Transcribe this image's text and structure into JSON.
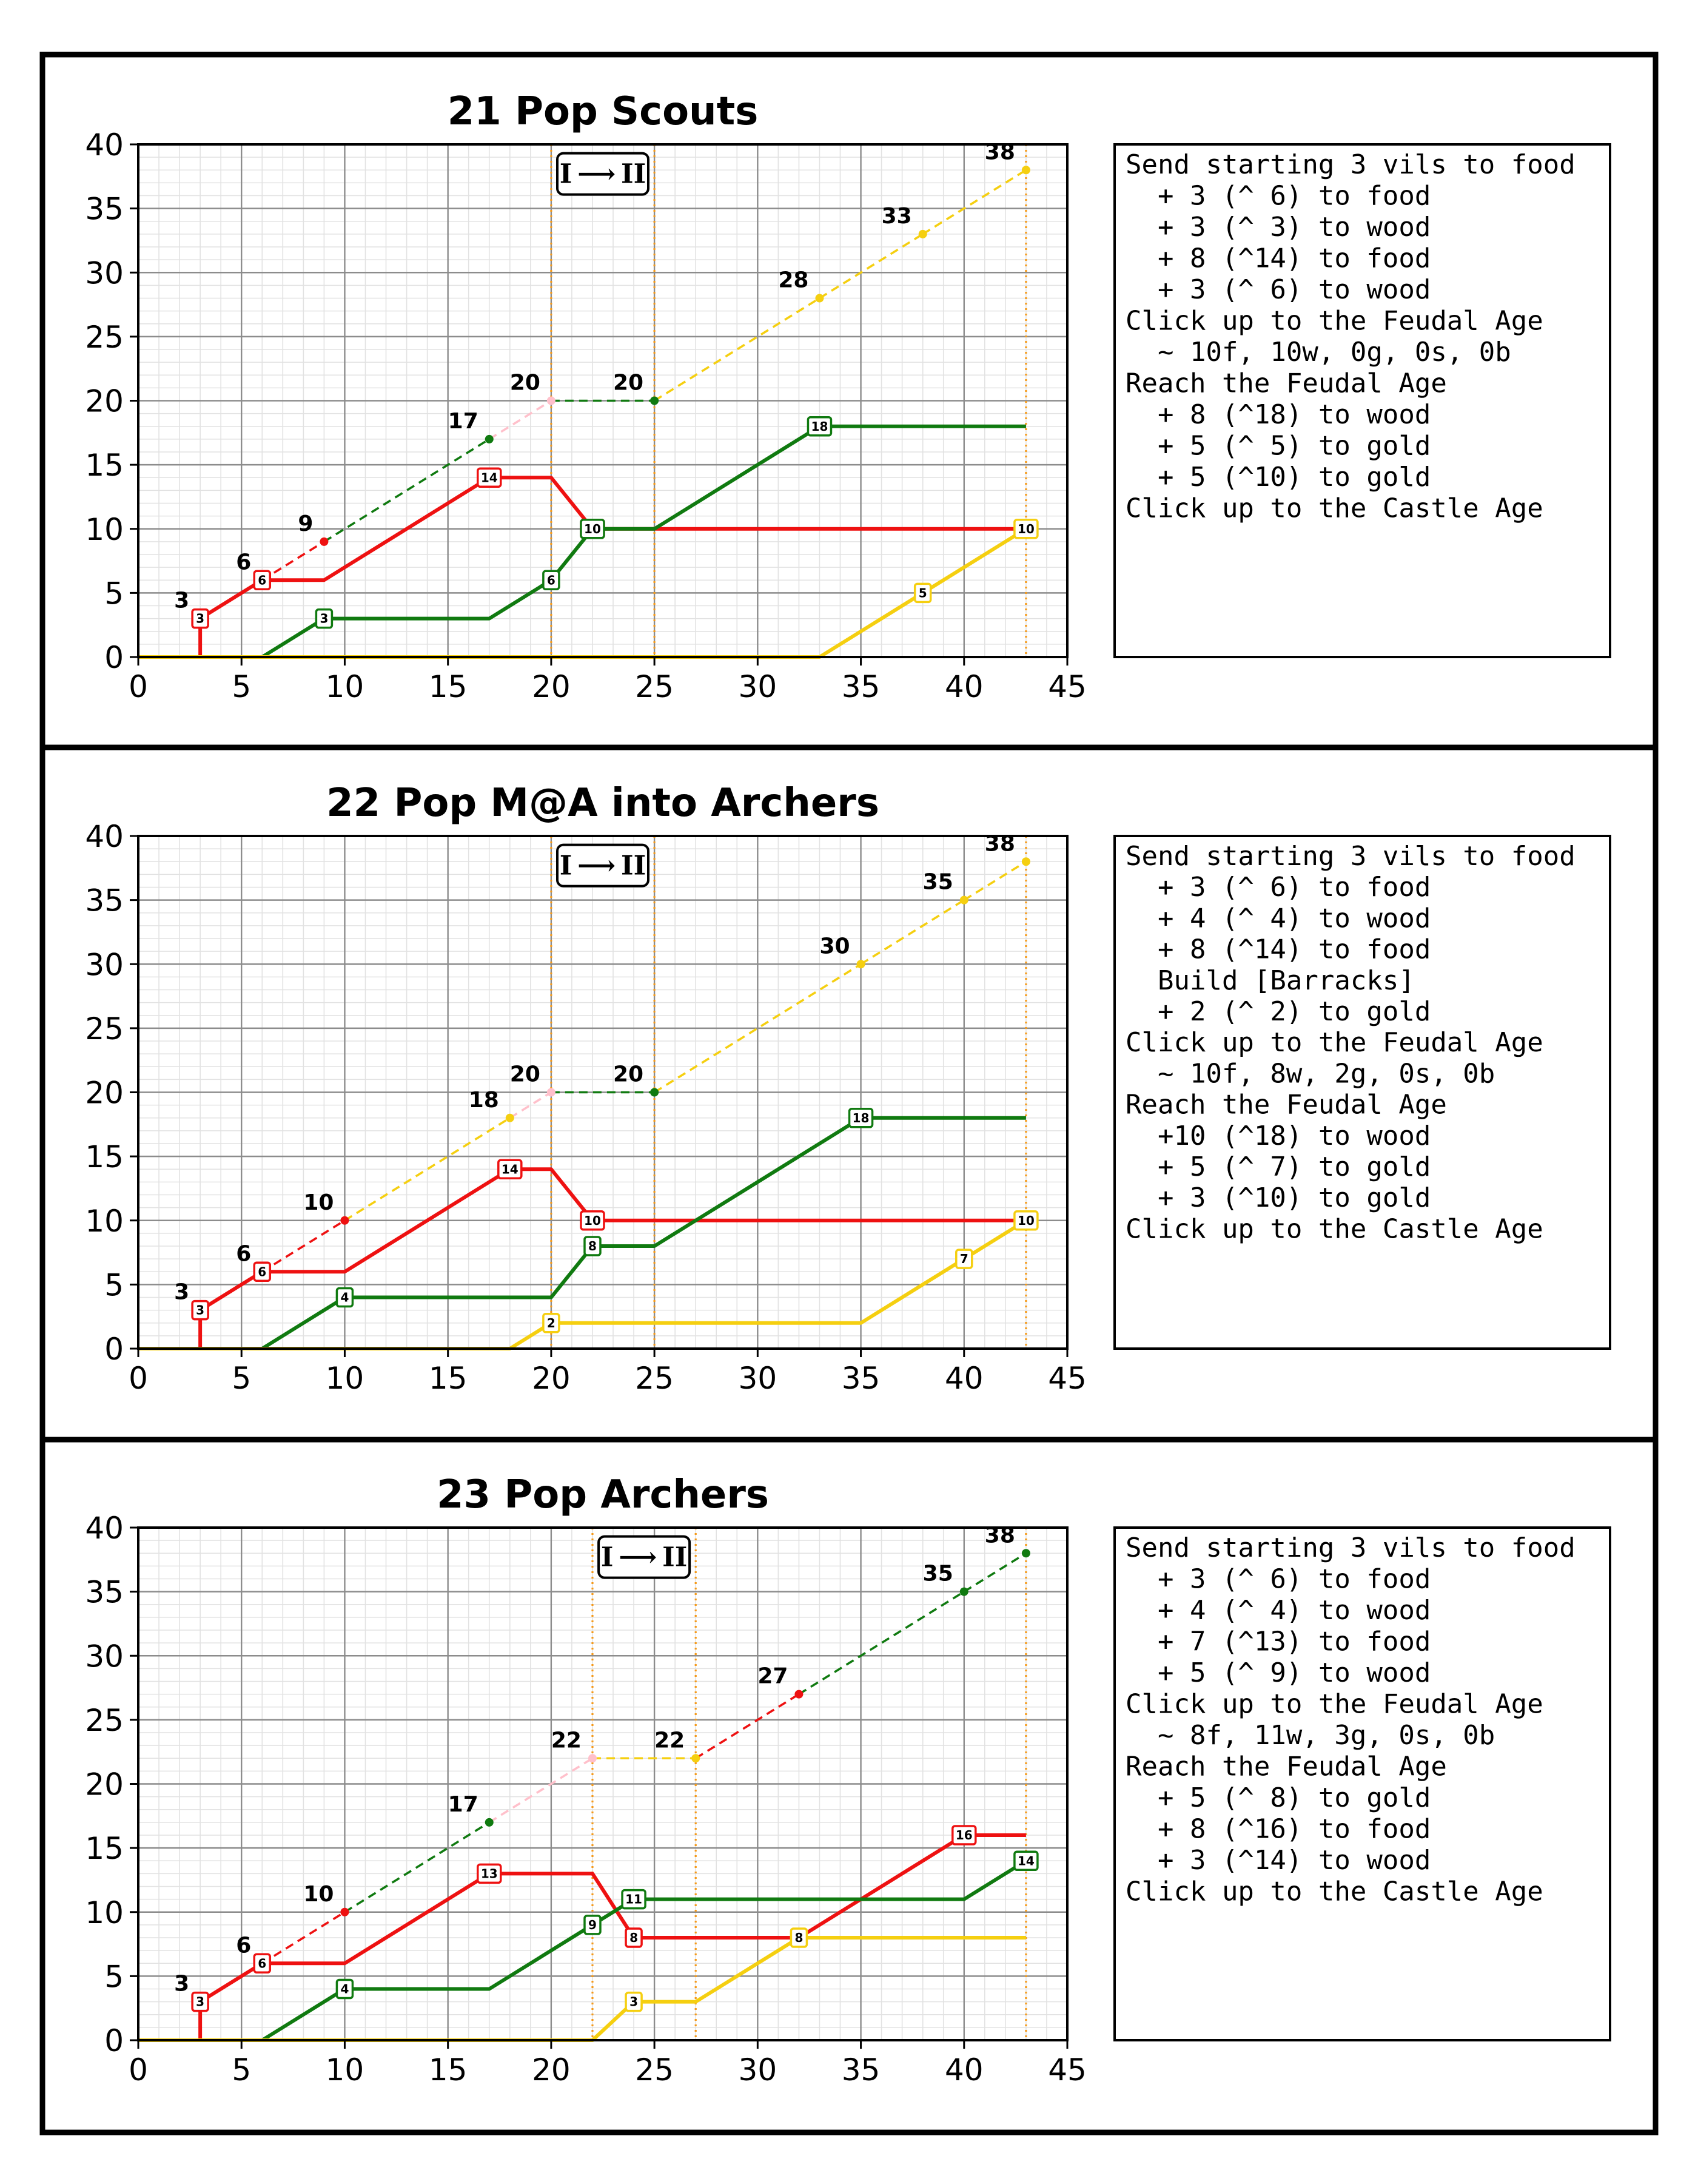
{
  "colors": {
    "food": "#ee1111",
    "wood": "#107a10",
    "gold": "#f5cf10",
    "idle": "#ffc0cb",
    "age_line": "#f59a1a"
  },
  "age_marker_text": "I ⟶ II",
  "chart_data": [
    {
      "type": "line",
      "title": "21 Pop Scouts",
      "xlim": [
        0,
        45
      ],
      "ylim": [
        0,
        40
      ],
      "xticks": [
        0,
        5,
        10,
        15,
        20,
        25,
        30,
        35,
        40,
        45
      ],
      "yticks": [
        0,
        5,
        10,
        15,
        20,
        25,
        30,
        35,
        40
      ],
      "grid": true,
      "age_up": {
        "click": 20,
        "reach": 25,
        "castle": 43
      },
      "population": [
        {
          "x": 3,
          "y": 3,
          "color": "food"
        },
        {
          "x": 6,
          "y": 6,
          "color": "wood"
        },
        {
          "x": 9,
          "y": 9,
          "color": "food"
        },
        {
          "x": 17,
          "y": 17,
          "color": "wood"
        },
        {
          "x": 20,
          "y": 20,
          "color": "idle"
        },
        {
          "x": 25,
          "y": 20,
          "color": "wood"
        },
        {
          "x": 33,
          "y": 28,
          "color": "gold"
        },
        {
          "x": 38,
          "y": 33,
          "color": "gold"
        },
        {
          "x": 43,
          "y": 38,
          "color": "gold"
        }
      ],
      "series": [
        {
          "resource": "food",
          "points": [
            [
              0,
              0
            ],
            [
              3,
              0
            ],
            [
              3,
              3
            ],
            [
              6,
              6
            ],
            [
              9,
              6
            ],
            [
              17,
              14
            ],
            [
              20,
              14
            ],
            [
              22,
              10
            ],
            [
              43,
              10
            ]
          ],
          "labels": [
            [
              3,
              3,
              "3"
            ],
            [
              6,
              6,
              "6"
            ],
            [
              17,
              14,
              "14"
            ],
            [
              22,
              10,
              "10"
            ]
          ]
        },
        {
          "resource": "wood",
          "points": [
            [
              0,
              0
            ],
            [
              6,
              0
            ],
            [
              9,
              3
            ],
            [
              17,
              3
            ],
            [
              20,
              6
            ],
            [
              22,
              10
            ],
            [
              25,
              10
            ],
            [
              33,
              18
            ],
            [
              43,
              18
            ]
          ],
          "labels": [
            [
              9,
              3,
              "3"
            ],
            [
              20,
              6,
              "6"
            ],
            [
              22,
              10,
              "10"
            ],
            [
              33,
              18,
              "18"
            ]
          ]
        },
        {
          "resource": "gold",
          "points": [
            [
              0,
              0
            ],
            [
              33,
              0
            ],
            [
              43,
              10
            ]
          ],
          "labels": [
            [
              38,
              5,
              "5"
            ],
            [
              43,
              10,
              "10"
            ]
          ]
        }
      ],
      "build_order": [
        "Send starting 3 vils to food",
        "  + 3 (^ 6) to food",
        "  + 3 (^ 3) to wood",
        "  + 8 (^14) to food",
        "  + 3 (^ 6) to wood",
        "Click up to the Feudal Age",
        "  ~ 10f, 10w, 0g, 0s, 0b",
        "Reach the Feudal Age",
        "  + 8 (^18) to wood",
        "  + 5 (^ 5) to gold",
        "  + 5 (^10) to gold",
        "Click up to the Castle Age"
      ]
    },
    {
      "type": "line",
      "title": "22 Pop M@A into Archers",
      "xlim": [
        0,
        45
      ],
      "ylim": [
        0,
        40
      ],
      "xticks": [
        0,
        5,
        10,
        15,
        20,
        25,
        30,
        35,
        40,
        45
      ],
      "yticks": [
        0,
        5,
        10,
        15,
        20,
        25,
        30,
        35,
        40
      ],
      "grid": true,
      "age_up": {
        "click": 20,
        "reach": 25,
        "castle": 43
      },
      "population": [
        {
          "x": 3,
          "y": 3,
          "color": "food"
        },
        {
          "x": 6,
          "y": 6,
          "color": "wood"
        },
        {
          "x": 10,
          "y": 10,
          "color": "food"
        },
        {
          "x": 18,
          "y": 18,
          "color": "gold"
        },
        {
          "x": 20,
          "y": 20,
          "color": "idle"
        },
        {
          "x": 25,
          "y": 20,
          "color": "wood"
        },
        {
          "x": 35,
          "y": 30,
          "color": "gold"
        },
        {
          "x": 40,
          "y": 35,
          "color": "gold"
        },
        {
          "x": 43,
          "y": 38,
          "color": "gold"
        }
      ],
      "series": [
        {
          "resource": "food",
          "points": [
            [
              0,
              0
            ],
            [
              3,
              0
            ],
            [
              3,
              3
            ],
            [
              6,
              6
            ],
            [
              10,
              6
            ],
            [
              18,
              14
            ],
            [
              20,
              14
            ],
            [
              22,
              10
            ],
            [
              43,
              10
            ]
          ],
          "labels": [
            [
              3,
              3,
              "3"
            ],
            [
              6,
              6,
              "6"
            ],
            [
              18,
              14,
              "14"
            ],
            [
              22,
              10,
              "10"
            ]
          ]
        },
        {
          "resource": "wood",
          "points": [
            [
              0,
              0
            ],
            [
              6,
              0
            ],
            [
              10,
              4
            ],
            [
              20,
              4
            ],
            [
              22,
              8
            ],
            [
              25,
              8
            ],
            [
              35,
              18
            ],
            [
              43,
              18
            ]
          ],
          "labels": [
            [
              10,
              4,
              "4"
            ],
            [
              22,
              8,
              "8"
            ],
            [
              35,
              18,
              "18"
            ]
          ]
        },
        {
          "resource": "gold",
          "points": [
            [
              0,
              0
            ],
            [
              18,
              0
            ],
            [
              20,
              2
            ],
            [
              35,
              2
            ],
            [
              43,
              10
            ]
          ],
          "labels": [
            [
              20,
              2,
              "2"
            ],
            [
              40,
              7,
              "7"
            ],
            [
              43,
              10,
              "10"
            ]
          ]
        }
      ],
      "build_order": [
        "Send starting 3 vils to food",
        "  + 3 (^ 6) to food",
        "  + 4 (^ 4) to wood",
        "  + 8 (^14) to food",
        "  Build [Barracks]",
        "  + 2 (^ 2) to gold",
        "Click up to the Feudal Age",
        "  ~ 10f, 8w, 2g, 0s, 0b",
        "Reach the Feudal Age",
        "  +10 (^18) to wood",
        "  + 5 (^ 7) to gold",
        "  + 3 (^10) to gold",
        "Click up to the Castle Age"
      ]
    },
    {
      "type": "line",
      "title": "23 Pop Archers",
      "xlim": [
        0,
        45
      ],
      "ylim": [
        0,
        40
      ],
      "xticks": [
        0,
        5,
        10,
        15,
        20,
        25,
        30,
        35,
        40,
        45
      ],
      "yticks": [
        0,
        5,
        10,
        15,
        20,
        25,
        30,
        35,
        40
      ],
      "grid": true,
      "age_up": {
        "click": 22,
        "reach": 27,
        "castle": 43
      },
      "population": [
        {
          "x": 3,
          "y": 3,
          "color": "food"
        },
        {
          "x": 6,
          "y": 6,
          "color": "wood"
        },
        {
          "x": 10,
          "y": 10,
          "color": "food"
        },
        {
          "x": 17,
          "y": 17,
          "color": "wood"
        },
        {
          "x": 22,
          "y": 22,
          "color": "idle"
        },
        {
          "x": 27,
          "y": 22,
          "color": "gold"
        },
        {
          "x": 32,
          "y": 27,
          "color": "food"
        },
        {
          "x": 40,
          "y": 35,
          "color": "wood"
        },
        {
          "x": 43,
          "y": 38,
          "color": "wood"
        }
      ],
      "series": [
        {
          "resource": "food",
          "points": [
            [
              0,
              0
            ],
            [
              3,
              0
            ],
            [
              3,
              3
            ],
            [
              6,
              6
            ],
            [
              10,
              6
            ],
            [
              17,
              13
            ],
            [
              22,
              13
            ],
            [
              24,
              8
            ],
            [
              32,
              8
            ],
            [
              40,
              16
            ],
            [
              43,
              16
            ]
          ],
          "labels": [
            [
              3,
              3,
              "3"
            ],
            [
              6,
              6,
              "6"
            ],
            [
              17,
              13,
              "13"
            ],
            [
              24,
              8,
              "8"
            ],
            [
              40,
              16,
              "16"
            ]
          ]
        },
        {
          "resource": "wood",
          "points": [
            [
              0,
              0
            ],
            [
              6,
              0
            ],
            [
              10,
              4
            ],
            [
              17,
              4
            ],
            [
              22,
              9
            ],
            [
              24,
              11
            ],
            [
              40,
              11
            ],
            [
              43,
              14
            ]
          ],
          "labels": [
            [
              10,
              4,
              "4"
            ],
            [
              22,
              9,
              "9"
            ],
            [
              24,
              11,
              "11"
            ],
            [
              43,
              14,
              "14"
            ]
          ]
        },
        {
          "resource": "gold",
          "points": [
            [
              0,
              0
            ],
            [
              22,
              0
            ],
            [
              24,
              3
            ],
            [
              27,
              3
            ],
            [
              32,
              8
            ],
            [
              43,
              8
            ]
          ],
          "labels": [
            [
              24,
              3,
              "3"
            ],
            [
              32,
              8,
              "8"
            ]
          ]
        }
      ],
      "build_order": [
        "Send starting 3 vils to food",
        "  + 3 (^ 6) to food",
        "  + 4 (^ 4) to wood",
        "  + 7 (^13) to food",
        "  + 5 (^ 9) to wood",
        "Click up to the Feudal Age",
        "  ~ 8f, 11w, 3g, 0s, 0b",
        "Reach the Feudal Age",
        "  + 5 (^ 8) to gold",
        "  + 8 (^16) to food",
        "  + 3 (^14) to wood",
        "Click up to the Castle Age"
      ]
    }
  ]
}
